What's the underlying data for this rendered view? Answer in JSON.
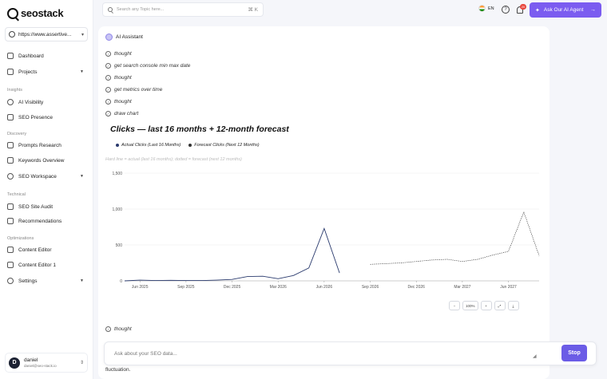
{
  "brand": {
    "name": "seostack"
  },
  "site": {
    "url": "https://www.assertive..."
  },
  "sidebar": {
    "top": [
      {
        "label": "Dashboard"
      },
      {
        "label": "Projects"
      }
    ],
    "insights_label": "Insights",
    "insights": [
      {
        "label": "AI Visibility"
      },
      {
        "label": "SEO Presence"
      }
    ],
    "discovery_label": "Discovery",
    "discovery": [
      {
        "label": "Prompts Research"
      },
      {
        "label": "Keywords Overview"
      },
      {
        "label": "SEO Workspace"
      }
    ],
    "technical_label": "Technical",
    "technical": [
      {
        "label": "SEO Site Audit"
      },
      {
        "label": "Recommendations"
      }
    ],
    "optimizations_label": "Optimizations",
    "optimizations": [
      {
        "label": "Content Editor"
      },
      {
        "label": "Content Editor 1"
      },
      {
        "label": "Settings"
      }
    ]
  },
  "user": {
    "initial": "D",
    "name": "daniel",
    "email": "daniel@seo-stack.io"
  },
  "header": {
    "search_placeholder": "Search any Topic here...",
    "search_shortcut": "⌘ K",
    "language": "EN",
    "notification_count": "20",
    "agent_button": "Ask Our AI Agent"
  },
  "assistant": {
    "title": "AI Assistant",
    "steps": [
      {
        "text": "thought"
      },
      {
        "text": "get search console min max date"
      },
      {
        "text": "thought"
      },
      {
        "text": "get metrics over time"
      },
      {
        "text": "thought"
      },
      {
        "text": "draw chart"
      }
    ],
    "final_step": "thought",
    "tail_text": "fluctuation."
  },
  "chart_data": {
    "type": "line",
    "title": "Clicks — last 16 months + 12-month forecast",
    "note": "Hard line = actual (last 16 months); dotted = forecast (next 12 months)",
    "legend_placement": "top-left",
    "grid": true,
    "xlabel": "",
    "ylabel": "",
    "ylim": [
      0,
      1500
    ],
    "yticks": [
      "0",
      "500",
      "1,000",
      "1,500"
    ],
    "xticks": [
      "Jun 2025",
      "Sep 2025",
      "Dec 2025",
      "Mar 2026",
      "Jun 2026",
      "Sep 2026",
      "Dec 2026",
      "Mar 2027",
      "Jun 2027"
    ],
    "series": [
      {
        "name": "Actual Clicks (Last 16 Months)",
        "style": "solid",
        "color": "#2b3b6e",
        "x": [
          "May 2025",
          "Jun 2025",
          "Jul 2025",
          "Aug 2025",
          "Sep 2025",
          "Oct 2025",
          "Nov 2025",
          "Dec 2025",
          "Jan 2026",
          "Feb 2026",
          "Mar 2026",
          "Apr 2026",
          "May 2026",
          "Jun 2026",
          "Jul 2026",
          "Aug 2026"
        ],
        "values": [
          0,
          10,
          5,
          8,
          5,
          5,
          10,
          20,
          60,
          65,
          30,
          75,
          180,
          730,
          110,
          null
        ]
      },
      {
        "name": "Forecast Clicks (Next 12 Months)",
        "style": "dotted",
        "color": "#333333",
        "x": [
          "Sep 2026",
          "Oct 2026",
          "Nov 2026",
          "Dec 2026",
          "Jan 2027",
          "Feb 2027",
          "Mar 2027",
          "Apr 2027",
          "May 2027",
          "Jun 2027",
          "Jul 2027",
          "Aug 2027"
        ],
        "values": [
          230,
          240,
          250,
          270,
          290,
          300,
          270,
          300,
          360,
          410,
          960,
          350
        ]
      }
    ]
  },
  "toolbar": {
    "zoom": "100%"
  },
  "composer": {
    "placeholder": "Ask about your SEO data...",
    "stop_label": "Stop"
  }
}
